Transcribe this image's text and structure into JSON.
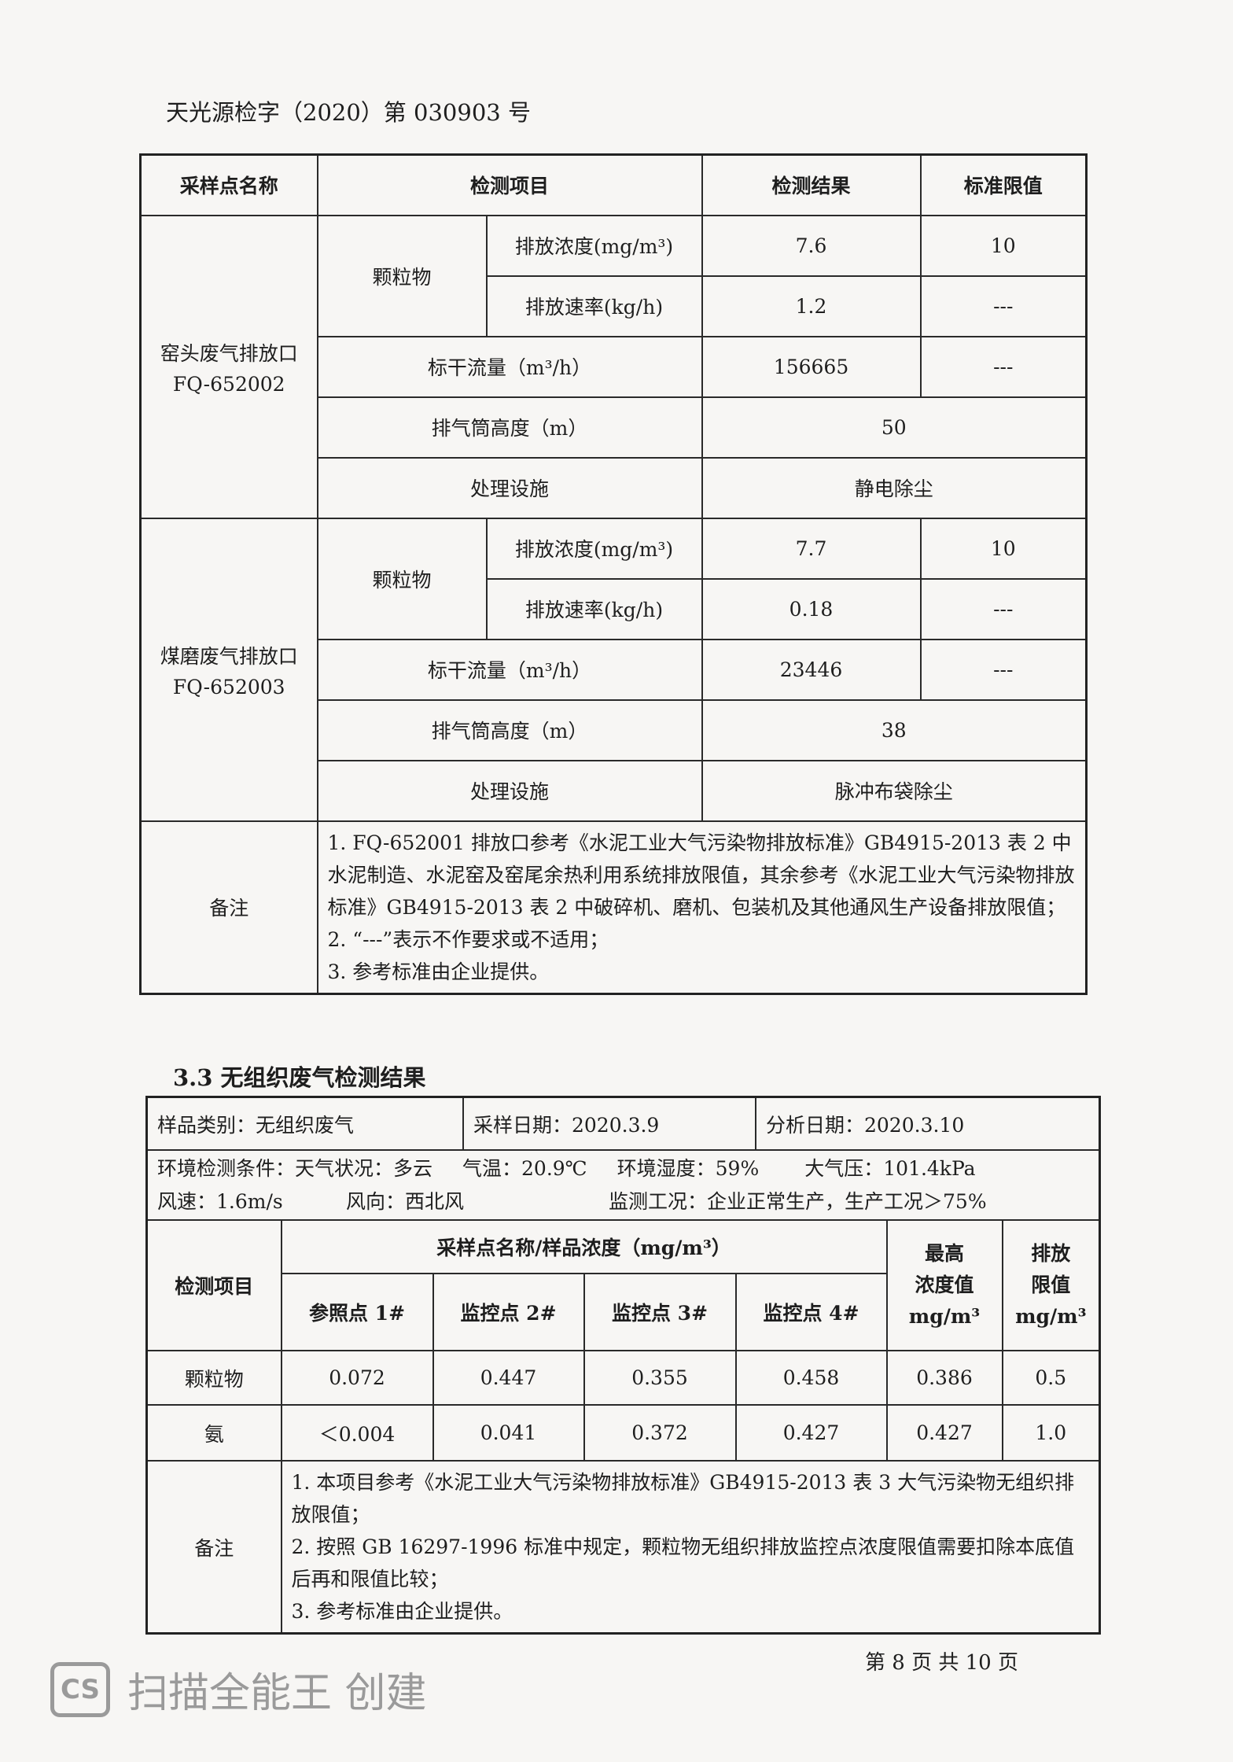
{
  "doc_number": "天光源检字（2020）第 030903 号",
  "table1": {
    "headers": [
      "采样点名称",
      "检测项目",
      "检测结果",
      "标准限值"
    ],
    "sites": [
      {
        "name": "窑头废气排放口",
        "code": "FQ-652002",
        "pm_label": "颗粒物",
        "conc_label": "排放浓度(mg/m³)",
        "conc_result": "7.6",
        "conc_limit": "10",
        "rate_label": "排放速率(kg/h)",
        "rate_result": "1.2",
        "rate_limit": "---",
        "flow_label": "标干流量（m³/h）",
        "flow_result": "156665",
        "flow_limit": "---",
        "height_label": "排气筒高度（m）",
        "height_value": "50",
        "facility_label": "处理设施",
        "facility_value": "静电除尘"
      },
      {
        "name": "煤磨废气排放口",
        "code": "FQ-652003",
        "pm_label": "颗粒物",
        "conc_label": "排放浓度(mg/m³)",
        "conc_result": "7.7",
        "conc_limit": "10",
        "rate_label": "排放速率(kg/h)",
        "rate_result": "0.18",
        "rate_limit": "---",
        "flow_label": "标干流量（m³/h）",
        "flow_result": "23446",
        "flow_limit": "---",
        "height_label": "排气筒高度（m）",
        "height_value": "38",
        "facility_label": "处理设施",
        "facility_value": "脉冲布袋除尘"
      }
    ],
    "note_label": "备注",
    "notes": [
      "1. FQ-652001 排放口参考《水泥工业大气污染物排放标准》GB4915-2013 表 2 中水泥制造、水泥窑及窑尾余热利用系统排放限值，其余参考《水泥工业大气污染物排放标准》GB4915-2013 表 2 中破碎机、磨机、包装机及其他通风生产设备排放限值；",
      "2. “---”表示不作要求或不适用；",
      "3. 参考标准由企业提供。"
    ]
  },
  "section_title": "3.3 无组织废气检测结果",
  "table2": {
    "sample_type": "样品类别：无组织废气",
    "sampling_date": "采样日期：2020.3.9",
    "analysis_date": "分析日期：2020.3.10",
    "env_line1": [
      "环境检测条件：天气状况：多云",
      "气温：20.9℃",
      "环境湿度：59%",
      "大气压：101.4kPa"
    ],
    "env_line2": [
      "风速：1.6m/s",
      "风向：西北风",
      "监测工况：企业正常生产，生产工况＞75%"
    ],
    "item_header": "检测项目",
    "group_header": "采样点名称/样品浓度（mg/m³）",
    "points": [
      "参照点 1#",
      "监控点 2#",
      "监控点 3#",
      "监控点 4#"
    ],
    "max_header": [
      "最高",
      "浓度值",
      "mg/m³"
    ],
    "limit_header": [
      "排放",
      "限值",
      "mg/m³"
    ],
    "rows": [
      {
        "item": "颗粒物",
        "values": [
          "0.072",
          "0.447",
          "0.355",
          "0.458"
        ],
        "max": "0.386",
        "limit": "0.5"
      },
      {
        "item": "氨",
        "values": [
          "＜0.004",
          "0.041",
          "0.372",
          "0.427"
        ],
        "max": "0.427",
        "limit": "1.0"
      }
    ],
    "note_label": "备注",
    "notes": [
      "1. 本项目参考《水泥工业大气污染物排放标准》GB4915-2013 表 3 大气污染物无组织排放限值；",
      "2. 按照 GB 16297-1996 标准中规定，颗粒物无组织排放监控点浓度限值需要扣除本底值后再和限值比较；",
      "3. 参考标准由企业提供。"
    ]
  },
  "footer": "第 8 页 共 10 页",
  "watermark": {
    "logo": "CS",
    "text": "扫描全能王 创建"
  }
}
